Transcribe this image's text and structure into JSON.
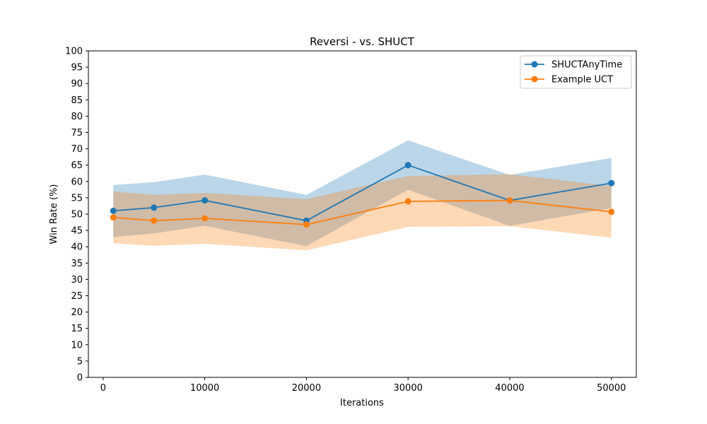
{
  "chart_data": {
    "type": "line",
    "title": "Reversi - vs. SHUCT",
    "xlabel": "Iterations",
    "ylabel": "Win Rate (%)",
    "x": [
      1000,
      5000,
      10000,
      20000,
      30000,
      40000,
      50000
    ],
    "xlim": [
      -1450,
      52450
    ],
    "ylim": [
      0,
      100
    ],
    "xticks": [
      0,
      10000,
      20000,
      30000,
      40000,
      50000
    ],
    "yticks": [
      0,
      5,
      10,
      15,
      20,
      25,
      30,
      35,
      40,
      45,
      50,
      55,
      60,
      65,
      70,
      75,
      80,
      85,
      90,
      95,
      100
    ],
    "grid": false,
    "legend_position": "top-right",
    "series": [
      {
        "name": "SHUCTAnyTime",
        "color": "#1f77b4",
        "band_color": "#1f77b4",
        "values": [
          51.0,
          52.0,
          54.2,
          48.0,
          65.0,
          54.2,
          59.5
        ],
        "band_upper": [
          58.9,
          59.8,
          62.1,
          55.9,
          72.6,
          62.0,
          67.2
        ],
        "band_lower": [
          43.0,
          44.1,
          46.4,
          40.2,
          57.5,
          46.4,
          51.9
        ]
      },
      {
        "name": "Example UCT",
        "color": "#ff7f0e",
        "band_color": "#ff7f0e",
        "values": [
          49.0,
          48.0,
          48.7,
          46.8,
          53.9,
          54.2,
          50.7
        ],
        "band_upper": [
          56.9,
          55.9,
          56.5,
          54.6,
          61.7,
          62.2,
          58.6
        ],
        "band_lower": [
          41.1,
          40.3,
          40.9,
          38.9,
          46.1,
          46.3,
          42.8
        ]
      }
    ]
  }
}
